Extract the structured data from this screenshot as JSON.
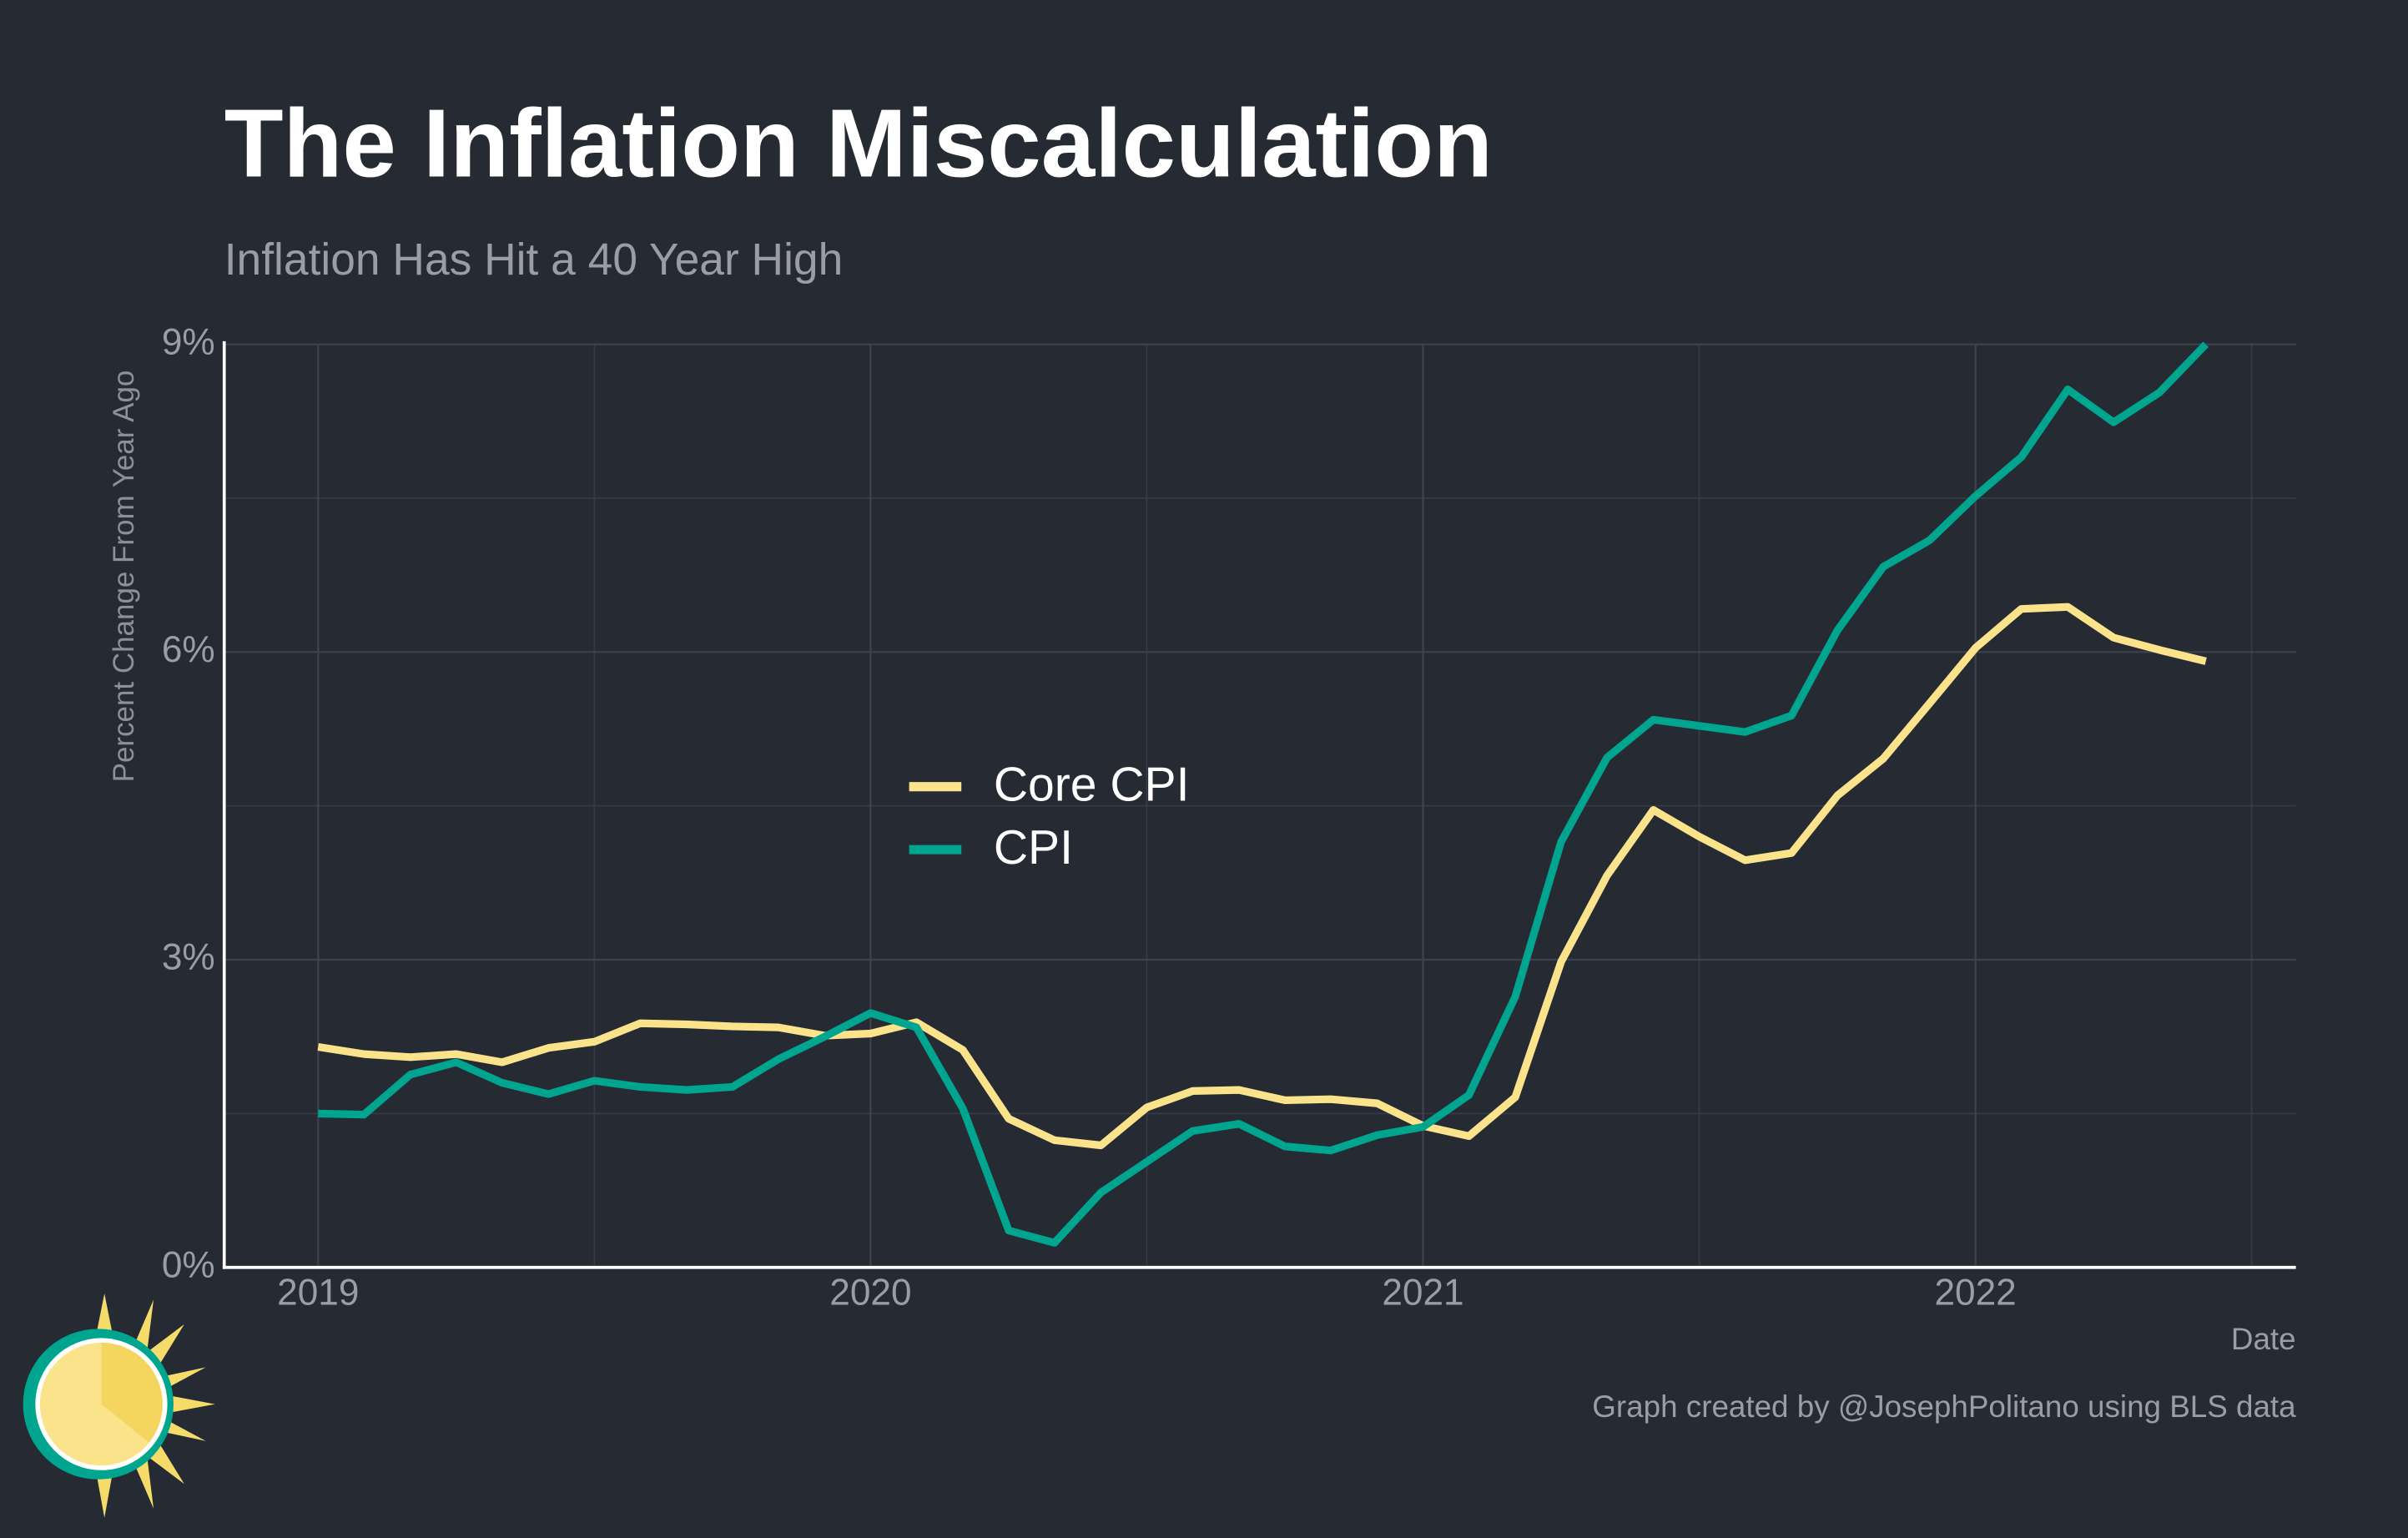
{
  "chart_data": {
    "type": "line",
    "title": "The Inflation Miscalculation",
    "subtitle": "Inflation Has Hit a 40 Year High",
    "y_label": "Percent Change From Year Ago",
    "x_label": "Date",
    "caption": "Graph created by @JosephPolitano using BLS data",
    "x": [
      2019,
      2019.083,
      2019.167,
      2019.25,
      2019.333,
      2019.417,
      2019.5,
      2019.583,
      2019.667,
      2019.75,
      2019.833,
      2019.917,
      2020,
      2020.083,
      2020.167,
      2020.25,
      2020.333,
      2020.417,
      2020.5,
      2020.583,
      2020.667,
      2020.75,
      2020.833,
      2020.917,
      2021,
      2021.083,
      2021.167,
      2021.25,
      2021.333,
      2021.417,
      2021.5,
      2021.583,
      2021.667,
      2021.75,
      2021.833,
      2021.917,
      2022,
      2022.083,
      2022.167,
      2022.25,
      2022.333,
      2022.417
    ],
    "series": [
      {
        "name": "Core CPI",
        "color": "#fbe38c",
        "values": [
          2.15,
          2.08,
          2.05,
          2.08,
          2.0,
          2.14,
          2.2,
          2.38,
          2.37,
          2.35,
          2.34,
          2.26,
          2.28,
          2.39,
          2.12,
          1.45,
          1.24,
          1.19,
          1.56,
          1.72,
          1.73,
          1.63,
          1.64,
          1.6,
          1.38,
          1.28,
          1.66,
          2.98,
          3.82,
          4.46,
          4.2,
          3.97,
          4.04,
          4.6,
          4.96,
          5.5,
          6.04,
          6.42,
          6.44,
          6.14,
          6.02,
          5.91
        ]
      },
      {
        "name": "CPI",
        "color": "#00a58f",
        "values": [
          1.5,
          1.49,
          1.88,
          2.0,
          1.8,
          1.69,
          1.82,
          1.76,
          1.73,
          1.76,
          2.03,
          2.25,
          2.48,
          2.34,
          1.55,
          0.36,
          0.24,
          0.73,
          1.03,
          1.33,
          1.4,
          1.18,
          1.14,
          1.29,
          1.37,
          1.68,
          2.64,
          4.15,
          4.97,
          5.34,
          5.28,
          5.22,
          5.38,
          6.21,
          6.83,
          7.09,
          7.52,
          7.9,
          8.56,
          8.24,
          8.53,
          9.0
        ]
      }
    ],
    "xlim": [
      2018.83,
      2022.58
    ],
    "xticks": [
      2019,
      2020,
      2021,
      2022
    ],
    "ylim": [
      0,
      9
    ],
    "yticks": [
      {
        "value": 0,
        "label": "0%"
      },
      {
        "value": 3,
        "label": "3%"
      },
      {
        "value": 6,
        "label": "6%"
      },
      {
        "value": 9,
        "label": "9%"
      }
    ],
    "grid": true
  }
}
